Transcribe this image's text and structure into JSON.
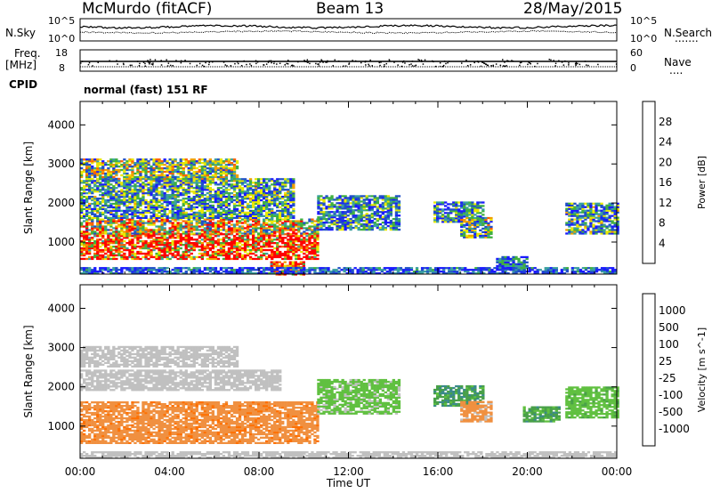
{
  "header": {
    "station": "McMurdo (fitACF)",
    "beam": "Beam 13",
    "date": "28/May/2015"
  },
  "noise_panel": {
    "left_label": "N.Sky",
    "right_label": "N.Search",
    "right_dots": ".......",
    "left_tick_top": "10^5",
    "left_tick_bottom": "10^0",
    "right_tick_top": "10^5",
    "right_tick_bottom": "10^0"
  },
  "freq_panel": {
    "label_line1": "Freq.",
    "label_line2": "[MHz]",
    "left_tick_top": "18",
    "left_tick_bottom": "8",
    "right_label": "Nave",
    "right_dots": "....",
    "right_tick_top": "60",
    "right_tick_bottom": "0"
  },
  "cpid": {
    "label": "CPID",
    "value": "normal (fast) 151 RF"
  },
  "chart_data": [
    {
      "type": "heatmap",
      "parameter": "Power",
      "ylabel": "Slant Range [km]",
      "xlabel": "",
      "ylim": [
        180,
        4600
      ],
      "yticks": [
        1000,
        2000,
        3000,
        4000
      ],
      "xlim_hours": [
        0,
        24
      ],
      "colorbar": {
        "label": "Power [dB]",
        "ticks": [
          "4",
          "8",
          "12",
          "16",
          "20",
          "24",
          "28"
        ],
        "colors": [
          "#1a1aff",
          "#2050c8",
          "#3aa0a0",
          "#40b040",
          "#e8e800",
          "#f0a000",
          "#ff6000",
          "#ff0000"
        ],
        "range": [
          0,
          30
        ]
      },
      "regions": [
        {
          "t0": 0.0,
          "t1": 10.6,
          "r0": 550,
          "r1": 1200,
          "value": 27
        },
        {
          "t0": 0.0,
          "t1": 10.6,
          "r0": 1200,
          "r1": 1600,
          "value": 18
        },
        {
          "t0": 0.0,
          "t1": 9.5,
          "r0": 1600,
          "r1": 2600,
          "value": 10
        },
        {
          "t0": 0.0,
          "t1": 7.0,
          "r0": 2600,
          "r1": 3100,
          "value": 14
        },
        {
          "t0": 8.5,
          "t1": 10.0,
          "r0": 150,
          "r1": 500,
          "value": 26
        },
        {
          "t0": 10.6,
          "t1": 14.2,
          "r0": 1300,
          "r1": 2200,
          "value": 9
        },
        {
          "t0": 15.8,
          "t1": 18.0,
          "r0": 1500,
          "r1": 2000,
          "value": 9
        },
        {
          "t0": 17.0,
          "t1": 18.4,
          "r0": 1100,
          "r1": 1600,
          "value": 13
        },
        {
          "t0": 18.6,
          "t1": 20.0,
          "r0": 280,
          "r1": 600,
          "value": 7
        },
        {
          "t0": 21.7,
          "t1": 24.0,
          "r0": 1200,
          "r1": 2000,
          "value": 10
        },
        {
          "t0": 0.0,
          "t1": 24.0,
          "r0": 180,
          "r1": 320,
          "value": 5
        }
      ]
    },
    {
      "type": "heatmap",
      "parameter": "Velocity",
      "ylabel": "Slant Range [km]",
      "xlabel": "Time UT",
      "ylim": [
        180,
        4600
      ],
      "yticks": [
        1000,
        2000,
        3000,
        4000
      ],
      "xlim_hours": [
        0,
        24
      ],
      "xtick_labels": [
        "00:00",
        "04:00",
        "08:00",
        "12:00",
        "16:00",
        "20:00",
        "00:00"
      ],
      "colorbar": {
        "label": "Velocity [m s^-1]",
        "ticks": [
          "1000",
          "500",
          "100",
          "25",
          "-25",
          "-100",
          "-500",
          "-1000"
        ],
        "colors": [
          "#2040c0",
          "#3a8a8a",
          "#48a048",
          "#60c040",
          "#c0c0c0",
          "#f09040",
          "#ff7000",
          "#ff4010",
          "#ff0000"
        ],
        "range": [
          -1200,
          1200
        ]
      },
      "regions": [
        {
          "t0": 0.0,
          "t1": 10.6,
          "r0": 550,
          "r1": 1600,
          "value": 300
        },
        {
          "t0": 0.0,
          "t1": 9.0,
          "r0": 1900,
          "r1": 2400,
          "value": 10
        },
        {
          "t0": 0.0,
          "t1": 7.0,
          "r0": 2500,
          "r1": 3000,
          "value": -60
        },
        {
          "t0": 10.6,
          "t1": 14.2,
          "r0": 1300,
          "r1": 2200,
          "value": -200
        },
        {
          "t0": 15.8,
          "t1": 18.0,
          "r0": 1500,
          "r1": 2000,
          "value": -600
        },
        {
          "t0": 17.0,
          "t1": 18.4,
          "r0": 1100,
          "r1": 1600,
          "value": 200
        },
        {
          "t0": 19.8,
          "t1": 21.4,
          "r0": 1100,
          "r1": 1500,
          "value": -500
        },
        {
          "t0": 21.7,
          "t1": 24.0,
          "r0": 1200,
          "r1": 2000,
          "value": -300
        },
        {
          "t0": 0.0,
          "t1": 24.0,
          "r0": 180,
          "r1": 320,
          "value": 80
        }
      ]
    }
  ]
}
